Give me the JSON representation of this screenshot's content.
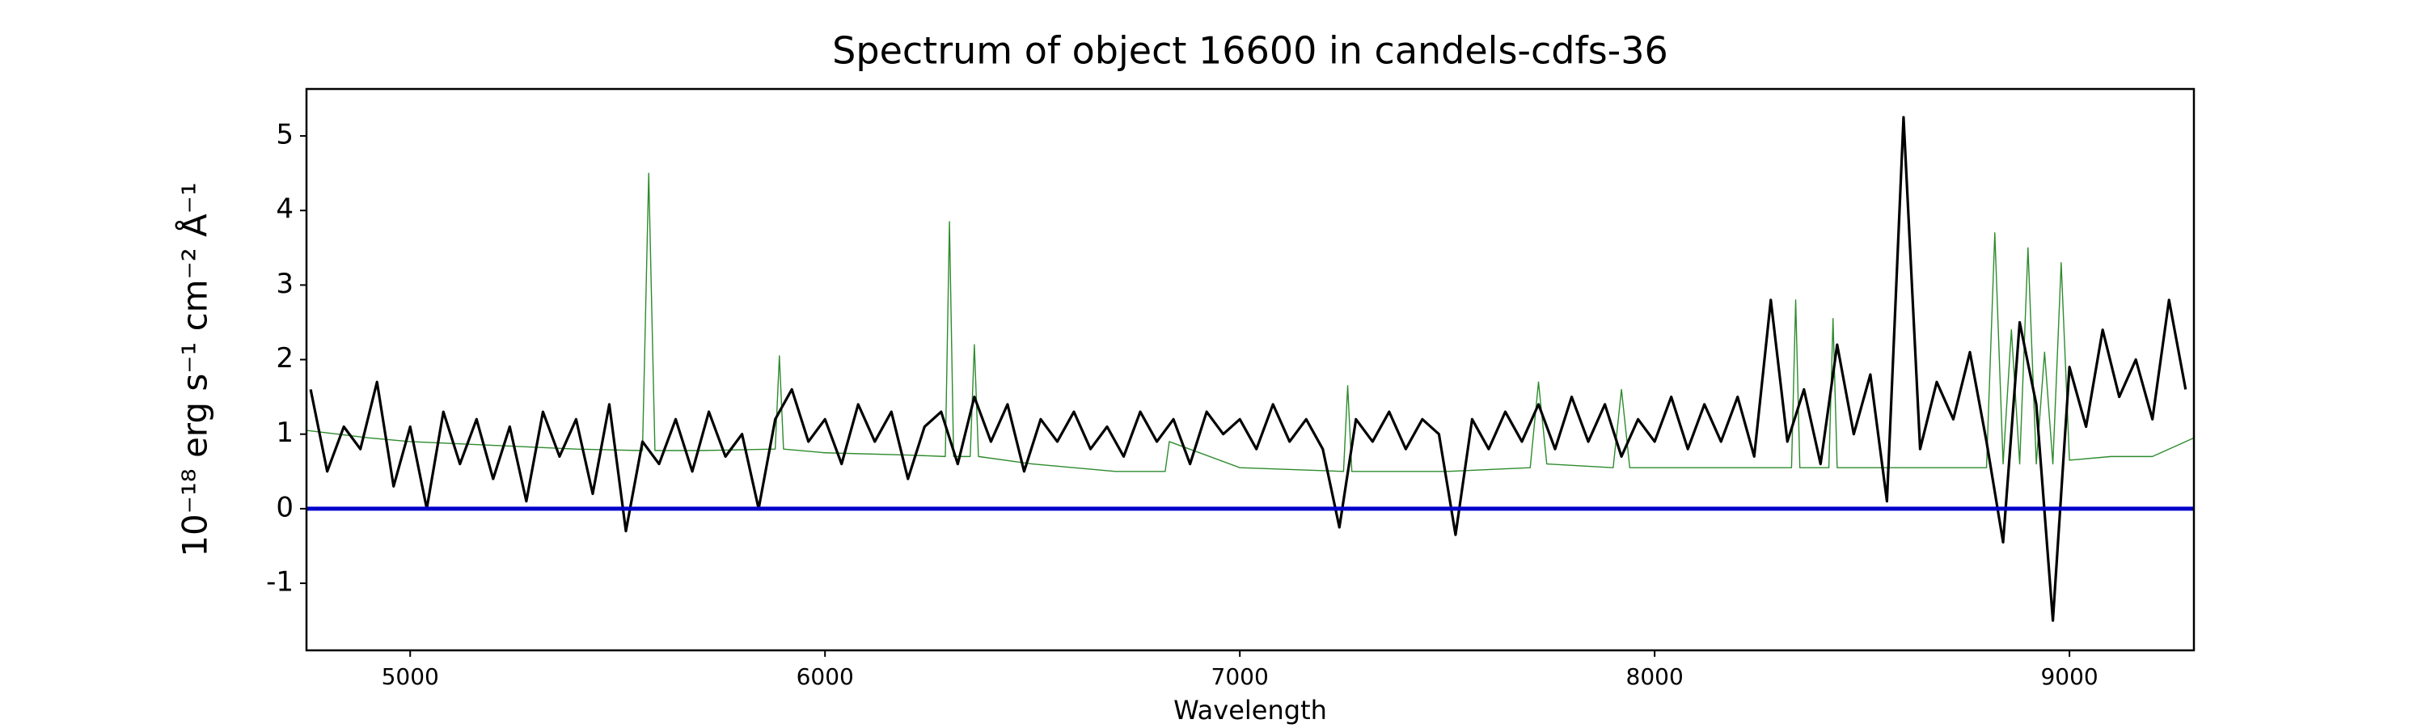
{
  "chart_data": {
    "type": "line",
    "title": "Spectrum of object 16600 in candels-cdfs-36",
    "xlabel": "Wavelength",
    "ylabel": "10⁻¹⁸ erg s⁻¹ cm⁻² Å⁻¹",
    "xlim": [
      4750,
      9300
    ],
    "ylim": [
      -1.9,
      5.63
    ],
    "xticks": [
      5000,
      6000,
      7000,
      8000,
      9000
    ],
    "yticks": [
      -1,
      0,
      1,
      2,
      3,
      4,
      5
    ],
    "grid": false,
    "series": [
      {
        "color": "#2e8b2e",
        "x": [
          4750,
          4900,
          5000,
          5200,
          5400,
          5560,
          5575,
          5590,
          5700,
          5880,
          5890,
          5900,
          6000,
          6200,
          6290,
          6300,
          6310,
          6350,
          6360,
          6370,
          6500,
          6600,
          6700,
          6820,
          6830,
          7000,
          7250,
          7260,
          7270,
          7500,
          7700,
          7720,
          7740,
          7900,
          7920,
          7940,
          8100,
          8330,
          8340,
          8350,
          8420,
          8430,
          8440,
          8600,
          8800,
          8820,
          8840,
          8860,
          8880,
          8900,
          8920,
          8940,
          8960,
          8980,
          9000,
          9100,
          9200,
          9300
        ],
        "values": [
          1.05,
          0.95,
          0.9,
          0.85,
          0.8,
          0.78,
          4.5,
          0.78,
          0.78,
          0.8,
          2.05,
          0.8,
          0.75,
          0.72,
          0.7,
          3.85,
          0.7,
          0.7,
          2.2,
          0.7,
          0.6,
          0.55,
          0.5,
          0.5,
          0.9,
          0.55,
          0.5,
          1.65,
          0.5,
          0.5,
          0.55,
          1.7,
          0.6,
          0.55,
          1.6,
          0.55,
          0.55,
          0.55,
          2.8,
          0.55,
          0.55,
          2.55,
          0.55,
          0.55,
          0.55,
          3.7,
          0.6,
          2.4,
          0.6,
          3.5,
          0.6,
          2.1,
          0.6,
          3.3,
          0.65,
          0.7,
          0.7,
          0.95
        ]
      },
      {
        "color": "#000000",
        "x": [
          4760,
          4800,
          4840,
          4880,
          4920,
          4960,
          5000,
          5040,
          5080,
          5120,
          5160,
          5200,
          5240,
          5280,
          5320,
          5360,
          5400,
          5440,
          5480,
          5520,
          5560,
          5600,
          5640,
          5680,
          5720,
          5760,
          5800,
          5840,
          5880,
          5920,
          5960,
          6000,
          6040,
          6080,
          6120,
          6160,
          6200,
          6240,
          6280,
          6320,
          6360,
          6400,
          6440,
          6480,
          6520,
          6560,
          6600,
          6640,
          6680,
          6720,
          6760,
          6800,
          6840,
          6880,
          6920,
          6960,
          7000,
          7040,
          7080,
          7120,
          7160,
          7200,
          7240,
          7280,
          7320,
          7360,
          7400,
          7440,
          7480,
          7520,
          7560,
          7600,
          7640,
          7680,
          7720,
          7760,
          7800,
          7840,
          7880,
          7920,
          7960,
          8000,
          8040,
          8080,
          8120,
          8160,
          8200,
          8240,
          8280,
          8320,
          8360,
          8400,
          8440,
          8480,
          8520,
          8560,
          8600,
          8640,
          8680,
          8720,
          8760,
          8800,
          8840,
          8880,
          8920,
          8960,
          9000,
          9040,
          9080,
          9120,
          9160,
          9200,
          9240,
          9280
        ],
        "values": [
          1.6,
          0.5,
          1.1,
          0.8,
          1.7,
          0.3,
          1.1,
          0.0,
          1.3,
          0.6,
          1.2,
          0.4,
          1.1,
          0.1,
          1.3,
          0.7,
          1.2,
          0.2,
          1.4,
          -0.3,
          0.9,
          0.6,
          1.2,
          0.5,
          1.3,
          0.7,
          1.0,
          0.0,
          1.2,
          1.6,
          0.9,
          1.2,
          0.6,
          1.4,
          0.9,
          1.3,
          0.4,
          1.1,
          1.3,
          0.6,
          1.5,
          0.9,
          1.4,
          0.5,
          1.2,
          0.9,
          1.3,
          0.8,
          1.1,
          0.7,
          1.3,
          0.9,
          1.2,
          0.6,
          1.3,
          1.0,
          1.2,
          0.8,
          1.4,
          0.9,
          1.2,
          0.8,
          -0.25,
          1.2,
          0.9,
          1.3,
          0.8,
          1.2,
          1.0,
          -0.35,
          1.2,
          0.8,
          1.3,
          0.9,
          1.4,
          0.8,
          1.5,
          0.9,
          1.4,
          0.7,
          1.2,
          0.9,
          1.5,
          0.8,
          1.4,
          0.9,
          1.5,
          0.7,
          2.8,
          0.9,
          1.6,
          0.6,
          2.2,
          1.0,
          1.8,
          0.1,
          5.25,
          0.8,
          1.7,
          1.2,
          2.1,
          0.9,
          -0.45,
          2.5,
          1.4,
          -1.5,
          1.9,
          1.1,
          2.4,
          1.5,
          2.0,
          1.2,
          2.8,
          1.6
        ]
      },
      {
        "color": "#0000cc",
        "x": [
          4750,
          9300
        ],
        "values": [
          0,
          0
        ]
      }
    ]
  }
}
